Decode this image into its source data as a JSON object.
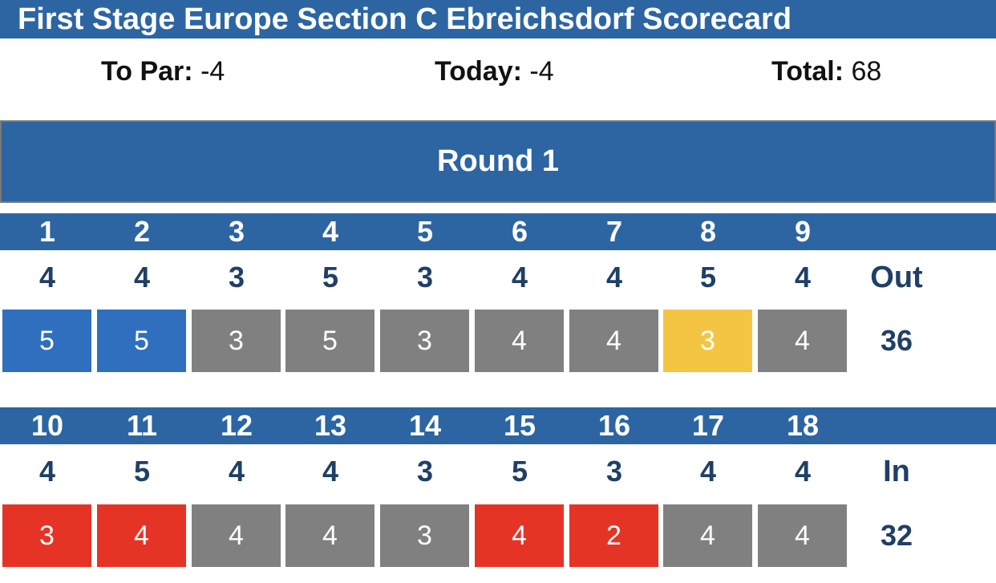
{
  "title": "First Stage Europe Section C Ebreichsdorf Scorecard",
  "summary": {
    "to_par_label": "To Par:",
    "to_par_value": "-4",
    "today_label": "Today:",
    "today_value": "-4",
    "total_label": "Total:",
    "total_value": "68"
  },
  "round": {
    "title": "Round 1",
    "colors": {
      "header_blue": "#2c65a2",
      "bogey_blue": "#2f6fbe",
      "par_gray": "#808080",
      "birdie_red": "#e53425",
      "eagle_gold": "#f4c542",
      "label_navy": "#1f3f66"
    },
    "front": {
      "holes": [
        "1",
        "2",
        "3",
        "4",
        "5",
        "6",
        "7",
        "8",
        "9"
      ],
      "pars": [
        "4",
        "4",
        "3",
        "5",
        "3",
        "4",
        "4",
        "5",
        "4"
      ],
      "scores": [
        "5",
        "5",
        "3",
        "5",
        "3",
        "4",
        "4",
        "3",
        "4"
      ],
      "score_types": [
        "bogey",
        "bogey",
        "par",
        "par",
        "par",
        "par",
        "par",
        "eagle",
        "par"
      ],
      "label": "Out",
      "total": "36"
    },
    "back": {
      "holes": [
        "10",
        "11",
        "12",
        "13",
        "14",
        "15",
        "16",
        "17",
        "18"
      ],
      "pars": [
        "4",
        "5",
        "4",
        "4",
        "3",
        "5",
        "3",
        "4",
        "4"
      ],
      "scores": [
        "3",
        "4",
        "4",
        "4",
        "3",
        "4",
        "2",
        "4",
        "4"
      ],
      "score_types": [
        "birdie",
        "birdie",
        "par",
        "par",
        "par",
        "birdie",
        "birdie",
        "par",
        "par"
      ],
      "label": "In",
      "total": "32"
    }
  }
}
